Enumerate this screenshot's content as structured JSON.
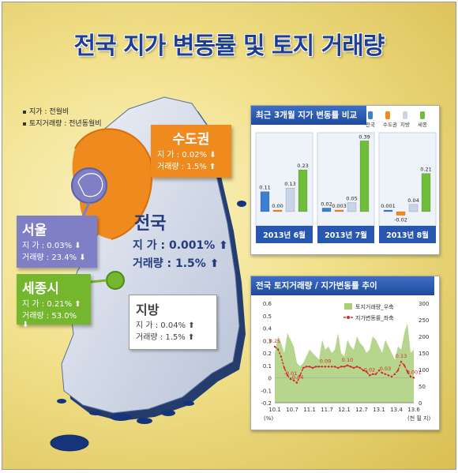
{
  "title": "전국 지가 변동률 및 토지 거래량",
  "notes": [
    "지가 : 전월비",
    "토지거래량 : 전년동월비"
  ],
  "colors": {
    "seoul_metro": "#ef8a1e",
    "seoul": "#7f7fc6",
    "sejong": "#74b62e",
    "national_text": "#243c7e",
    "header_blue": "#2b58ad"
  },
  "regions": {
    "sudo": {
      "name": "수도권",
      "land_label": "지  가 : 0.02%",
      "land_icon": "down-arrow",
      "trade_label": "거래량 : 1.5%",
      "trade_icon": "up-arrow"
    },
    "seoul": {
      "name": "서울",
      "land_label": "지  가 : 0.03%",
      "land_icon": "down-arrow",
      "trade_label": "거래량 : 23.4%",
      "trade_icon": "down-arrow"
    },
    "sejong": {
      "name": "세종시",
      "land_label": "지  가 : 0.21%",
      "land_icon": "up-arrow",
      "trade_label": "거래량 : 53.0%",
      "trade_icon": "down-arrow"
    },
    "national": {
      "name": "전국",
      "land_label": "지  가 : 0.001%",
      "land_icon": "up-arrow",
      "trade_label": "거래량 : 1.5%",
      "trade_icon": "up-arrow"
    },
    "jibang": {
      "name": "지방",
      "land_label": "지  가 : 0.04%",
      "land_icon": "up-arrow",
      "trade_label": "거래량 : 1.5%",
      "trade_icon": "up-arrow"
    }
  },
  "chart_data": [
    {
      "type": "bar",
      "title": "최근 3개월 지가 변동률 비교",
      "categories": [
        "2013년 6월",
        "2013년 7월",
        "2013년 8월"
      ],
      "series": [
        {
          "name": "전국",
          "color": "#3a7fd0",
          "values": [
            0.11,
            0.02,
            0.001
          ]
        },
        {
          "name": "수도권",
          "color": "#f28a17",
          "values": [
            0.0,
            0.003,
            -0.02
          ]
        },
        {
          "name": "지방",
          "color": "#c9d4e6",
          "values": [
            0.13,
            0.05,
            0.04
          ]
        },
        {
          "name": "세종",
          "color": "#6fbd3b",
          "values": [
            0.23,
            0.39,
            0.21
          ]
        }
      ],
      "value_labels": [
        [
          "0.11",
          "0.00",
          "0.13",
          "0.23"
        ],
        [
          "0.02",
          "0.003",
          "0.05",
          "0.39"
        ],
        [
          "0.001",
          "-0.02",
          "0.04",
          "0.21"
        ]
      ],
      "ylim": [
        -0.05,
        0.45
      ],
      "legend_position": "top-right"
    },
    {
      "type": "line",
      "title": "전국 토지거래량 / 지가변동률 추이",
      "x_ticks": [
        "10.1",
        "10.7",
        "11.1",
        "11.7",
        "12.1",
        "12.7",
        "13.1",
        "13.4",
        "13.6"
      ],
      "y_left": {
        "unit": "(%)",
        "ticks": [
          "0.6",
          "0.5",
          "0.4",
          "0.3",
          "0.2",
          "0.1",
          "0",
          "-0.1",
          "-0.2"
        ],
        "range": [
          -0.2,
          0.6
        ]
      },
      "y_right": {
        "unit": "(천 필 지)",
        "ticks": [
          "300",
          "250",
          "200",
          "150",
          "100",
          "50",
          "0"
        ],
        "range": [
          0,
          300
        ]
      },
      "series": [
        {
          "name": "토지거래량_우축",
          "kind": "area",
          "axis": "right",
          "color": "#a8cf78",
          "values": [
            150,
            200,
            180,
            150,
            210,
            190,
            170,
            120,
            110,
            120,
            140,
            160,
            150,
            140,
            130,
            190,
            160,
            170,
            150,
            160,
            210,
            150,
            140,
            190,
            170,
            160,
            200,
            180,
            170,
            150,
            160,
            200,
            190,
            170,
            150,
            190,
            170,
            150,
            130,
            170,
            160,
            210,
            240,
            150,
            160
          ]
        },
        {
          "name": "지가변동률_좌축",
          "kind": "line",
          "axis": "left",
          "color": "#d9262b",
          "values": [
            0.25,
            0.23,
            0.17,
            0.08,
            0.02,
            -0.01,
            -0.02,
            -0.04,
            0.02,
            0.08,
            0.09,
            0.09,
            0.08,
            0.09,
            0.09,
            0.09,
            0.09,
            0.09,
            0.09,
            0.09,
            0.08,
            0.09,
            0.09,
            0.1,
            0.09,
            0.08,
            0.09,
            0.08,
            0.06,
            0.05,
            0.02,
            0.03,
            0.03,
            0.06,
            0.04,
            0.03,
            0.02,
            0.01,
            0.03,
            0.06,
            0.13,
            0.1,
            0.05,
            0.01,
            0.001
          ]
        }
      ],
      "annotations": [
        {
          "index": 0,
          "text": "0.25"
        },
        {
          "index": 5,
          "text": "-0.01"
        },
        {
          "index": 7,
          "text": "-0.04"
        },
        {
          "index": 16,
          "text": "0.09"
        },
        {
          "index": 23,
          "text": "0.10"
        },
        {
          "index": 30,
          "text": "0.02"
        },
        {
          "index": 35,
          "text": "0.03"
        },
        {
          "index": 40,
          "text": "0.13"
        },
        {
          "index": 44,
          "text": "0.001"
        }
      ],
      "legend_position": "top-right"
    }
  ]
}
